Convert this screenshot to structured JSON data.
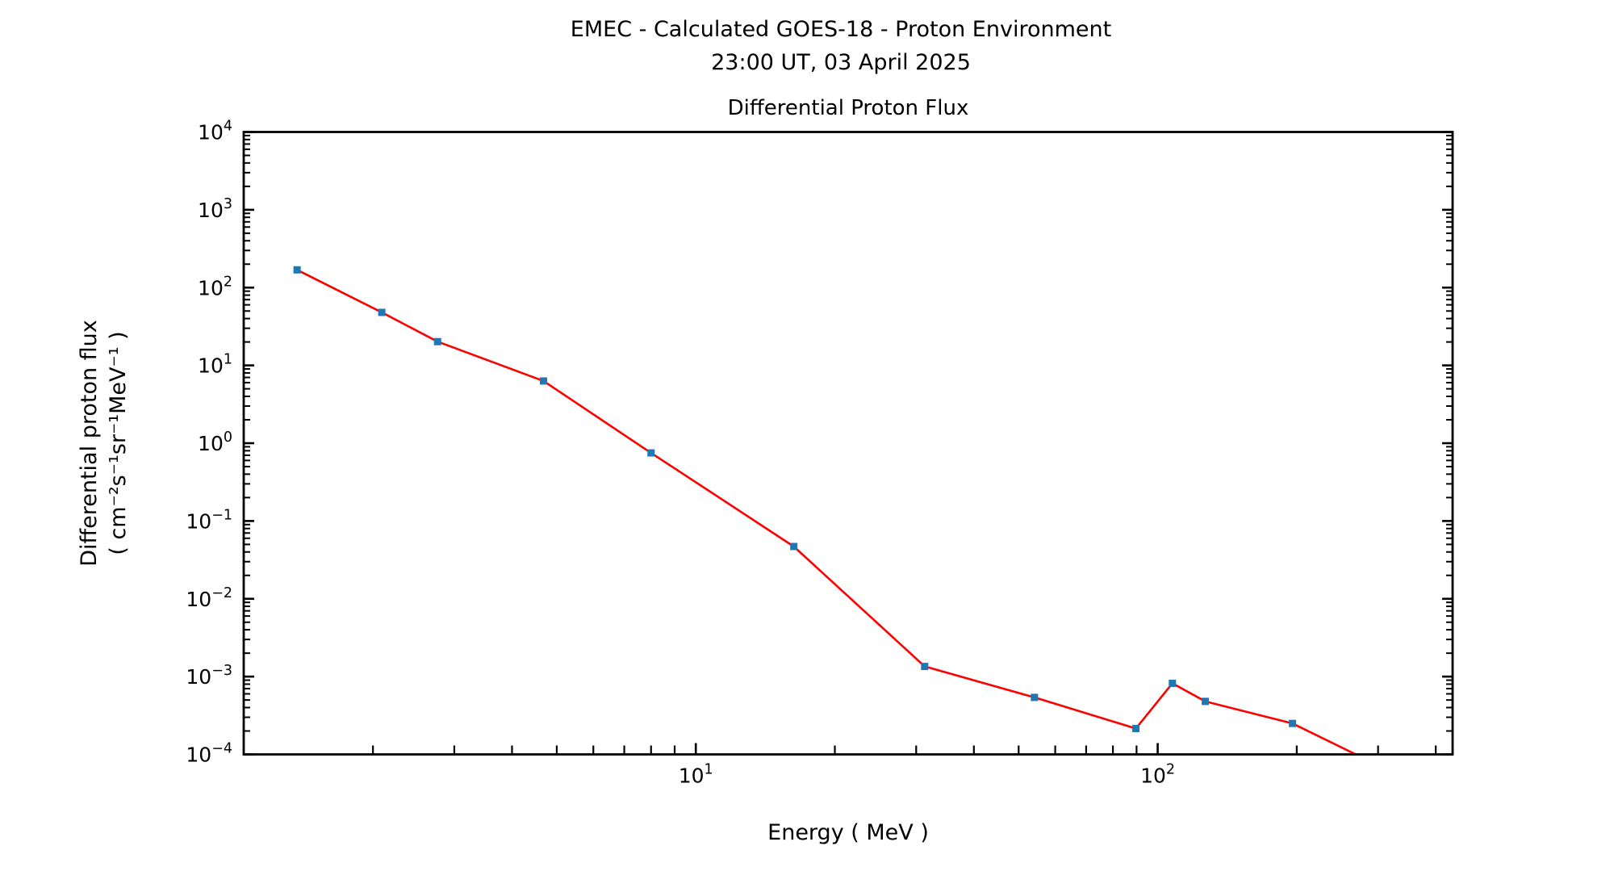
{
  "header": {
    "title_line1": "EMEC - Calculated GOES-18 - Proton Environment",
    "title_line2": "23:00 UT, 03 April 2025"
  },
  "chart_data": {
    "type": "line",
    "title": "Differential Proton Flux",
    "xlabel": "Energy ( MeV )",
    "ylabel_line1": "Differential proton flux",
    "ylabel_line2": "( cm⁻²s⁻¹sr⁻¹MeV⁻¹ )",
    "x_scale": "log",
    "y_scale": "log",
    "xlim": [
      1.05,
      435
    ],
    "ylim": [
      0.0001,
      10000
    ],
    "x_major_tick_exponents": [
      1,
      2
    ],
    "y_major_tick_exponents": [
      4,
      3,
      2,
      1,
      0,
      -1,
      -2,
      -3,
      -4
    ],
    "tick_style": "inward, log minor ticks 2-9 per decade, ticks on bottom/left/right spines",
    "grid": false,
    "legend": "none",
    "axis_color": "#000000",
    "series": [
      {
        "name": "Differential proton flux",
        "line_color": "#ff0000",
        "marker": "square",
        "marker_color": "#1f77b4",
        "x": [
          1.37,
          2.09,
          2.76,
          4.68,
          8.0,
          16.3,
          31.3,
          54.1,
          89.7,
          107.6,
          126.8,
          195.8,
          371
        ],
        "y": [
          169,
          48,
          20.2,
          6.3,
          0.75,
          0.047,
          0.00135,
          0.00054,
          0.000215,
          0.00082,
          0.00048,
          0.00025,
          3.9e-05
        ],
        "last_point_offscale": true
      }
    ]
  }
}
